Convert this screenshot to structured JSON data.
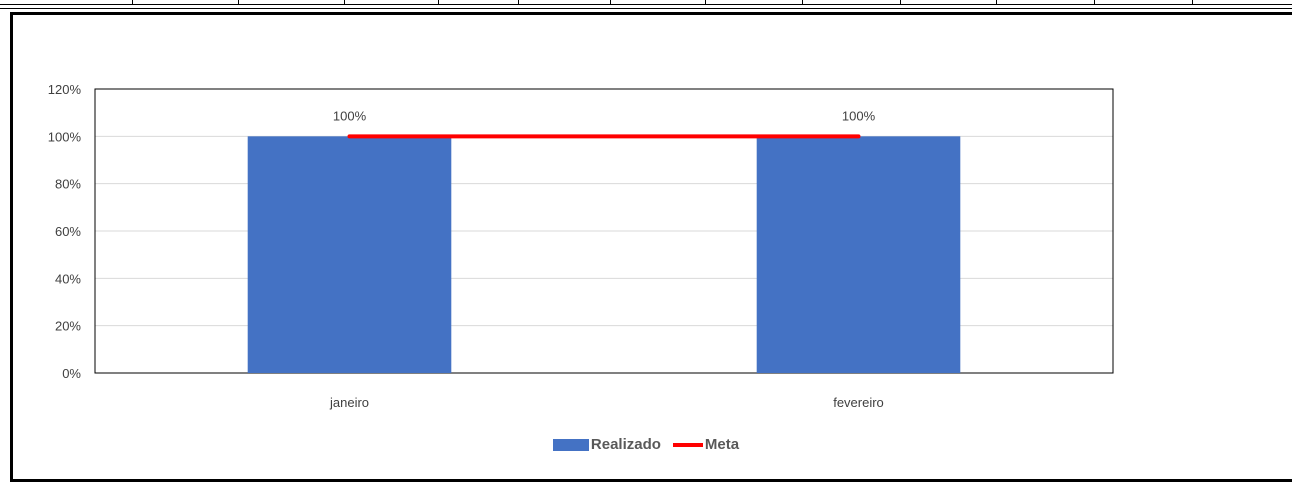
{
  "chart_data": {
    "type": "bar",
    "categories": [
      "janeiro",
      "fevereiro"
    ],
    "series": [
      {
        "name": "Realizado",
        "kind": "bar",
        "values": [
          1.0,
          1.0
        ],
        "color": "#4472c4",
        "data_labels": [
          "100%",
          "100%"
        ]
      },
      {
        "name": "Meta",
        "kind": "line",
        "values": [
          1.0,
          1.0
        ],
        "color": "#ff0000"
      }
    ],
    "ylim": [
      0,
      1.2
    ],
    "yticks": [
      {
        "value": 0,
        "label": "0%"
      },
      {
        "value": 0.2,
        "label": "20%"
      },
      {
        "value": 0.4,
        "label": "40%"
      },
      {
        "value": 0.6,
        "label": "60%"
      },
      {
        "value": 0.8,
        "label": "80%"
      },
      {
        "value": 1.0,
        "label": "100%"
      },
      {
        "value": 1.2,
        "label": "120%"
      }
    ],
    "title": "",
    "xlabel": "",
    "ylabel": "",
    "grid": true,
    "legend_position": "bottom"
  },
  "legend": {
    "realizado_label": "Realizado",
    "meta_label": "Meta"
  }
}
